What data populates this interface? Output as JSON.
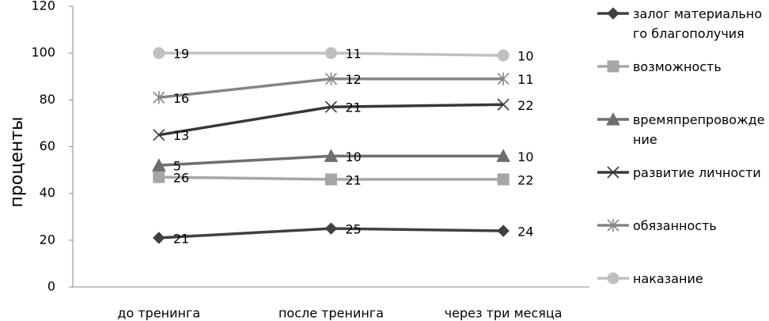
{
  "chart_data": {
    "type": "stacked_line",
    "y_axis_label": "проценты",
    "categories": [
      "до тренинга",
      "после тренинга",
      "через три месяца"
    ],
    "series": [
      {
        "name": "залог материального благополучия",
        "color": "#404040",
        "marker": "diamond",
        "values": [
          21,
          25,
          24
        ]
      },
      {
        "name": "возможность",
        "color": "#a6a6a6",
        "marker": "square",
        "values": [
          26,
          21,
          22
        ]
      },
      {
        "name": "времяпрепровождение",
        "color": "#6e6e6e",
        "marker": "triangle",
        "values": [
          5,
          10,
          10
        ]
      },
      {
        "name": "развитие личности",
        "color": "#383838",
        "marker": "x",
        "values": [
          13,
          21,
          22
        ]
      },
      {
        "name": "обязанность",
        "color": "#858585",
        "marker": "star",
        "values": [
          16,
          12,
          11
        ]
      },
      {
        "name": "наказание",
        "color": "#c0c0c0",
        "marker": "circle",
        "values": [
          19,
          11,
          10
        ]
      }
    ],
    "ylim": [
      0,
      120
    ],
    "yticks": [
      0,
      20,
      40,
      60,
      80,
      100,
      120
    ],
    "grid": false,
    "legend": "right"
  }
}
